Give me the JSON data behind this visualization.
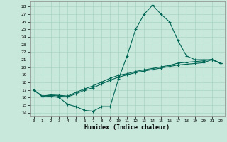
{
  "xlabel": "Humidex (Indice chaleur)",
  "xlim": [
    -0.5,
    22.5
  ],
  "ylim": [
    13.5,
    28.7
  ],
  "xticks": [
    0,
    1,
    2,
    3,
    4,
    5,
    6,
    7,
    8,
    9,
    10,
    11,
    12,
    13,
    14,
    15,
    16,
    17,
    18,
    19,
    20,
    21,
    22
  ],
  "yticks": [
    14,
    15,
    16,
    17,
    18,
    19,
    20,
    21,
    22,
    23,
    24,
    25,
    26,
    27,
    28
  ],
  "background_color": "#c8e8dc",
  "grid_color": "#a8d4c4",
  "line_color": "#006655",
  "line1_x": [
    0,
    1,
    2,
    3,
    4,
    5,
    6,
    7,
    8,
    9,
    10,
    11,
    12,
    13,
    14,
    15,
    16,
    17,
    18,
    19,
    20,
    21,
    22
  ],
  "line1_y": [
    17.0,
    16.1,
    16.2,
    16.0,
    15.1,
    14.8,
    14.3,
    14.2,
    14.8,
    14.8,
    18.5,
    21.5,
    25.0,
    27.0,
    28.2,
    27.0,
    26.0,
    23.5,
    21.5,
    21.0,
    21.0,
    21.0,
    20.5
  ],
  "line2_x": [
    0,
    1,
    2,
    3,
    4,
    5,
    6,
    7,
    8,
    9,
    10,
    11,
    12,
    13,
    14,
    15,
    16,
    17,
    18,
    19,
    20,
    21,
    22
  ],
  "line2_y": [
    17.0,
    16.2,
    16.3,
    16.2,
    16.1,
    16.5,
    17.0,
    17.3,
    17.8,
    18.3,
    18.7,
    19.0,
    19.3,
    19.5,
    19.7,
    19.9,
    20.1,
    20.3,
    20.4,
    20.5,
    20.6,
    21.0,
    20.5
  ],
  "line3_x": [
    0,
    1,
    2,
    3,
    4,
    5,
    6,
    7,
    8,
    9,
    10,
    11,
    12,
    13,
    14,
    15,
    16,
    17,
    18,
    19,
    20,
    21,
    22
  ],
  "line3_y": [
    17.0,
    16.2,
    16.35,
    16.3,
    16.2,
    16.7,
    17.15,
    17.55,
    18.05,
    18.55,
    18.95,
    19.15,
    19.45,
    19.65,
    19.85,
    20.05,
    20.25,
    20.55,
    20.65,
    20.75,
    20.85,
    21.05,
    20.55
  ]
}
